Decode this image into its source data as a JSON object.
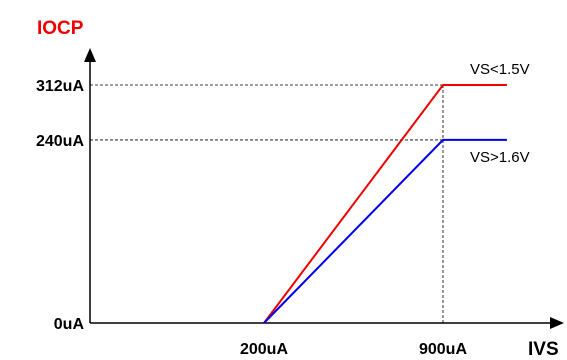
{
  "chart_data": {
    "type": "line",
    "ylabel": "IOCP",
    "xlabel": "IVS",
    "x_ticks": [
      {
        "value": 200,
        "label": "200uA"
      },
      {
        "value": 900,
        "label": "900uA"
      }
    ],
    "y_ticks": [
      {
        "value": 0,
        "label": "0uA"
      },
      {
        "value": 240,
        "label": "240uA"
      },
      {
        "value": 312,
        "label": "312uA"
      }
    ],
    "xlim": [
      -20,
      1150
    ],
    "ylim": [
      0,
      360
    ],
    "series": [
      {
        "name": "VS<1.5V",
        "color": "#ee0000",
        "points": [
          [
            200,
            0
          ],
          [
            900,
            312
          ],
          [
            1150,
            312
          ]
        ]
      },
      {
        "name": "VS>1.6V",
        "color": "#0000ee",
        "points": [
          [
            200,
            0
          ],
          [
            900,
            240
          ],
          [
            1150,
            240
          ]
        ]
      }
    ],
    "axis_label_color": "#ee0000",
    "grid": false
  }
}
